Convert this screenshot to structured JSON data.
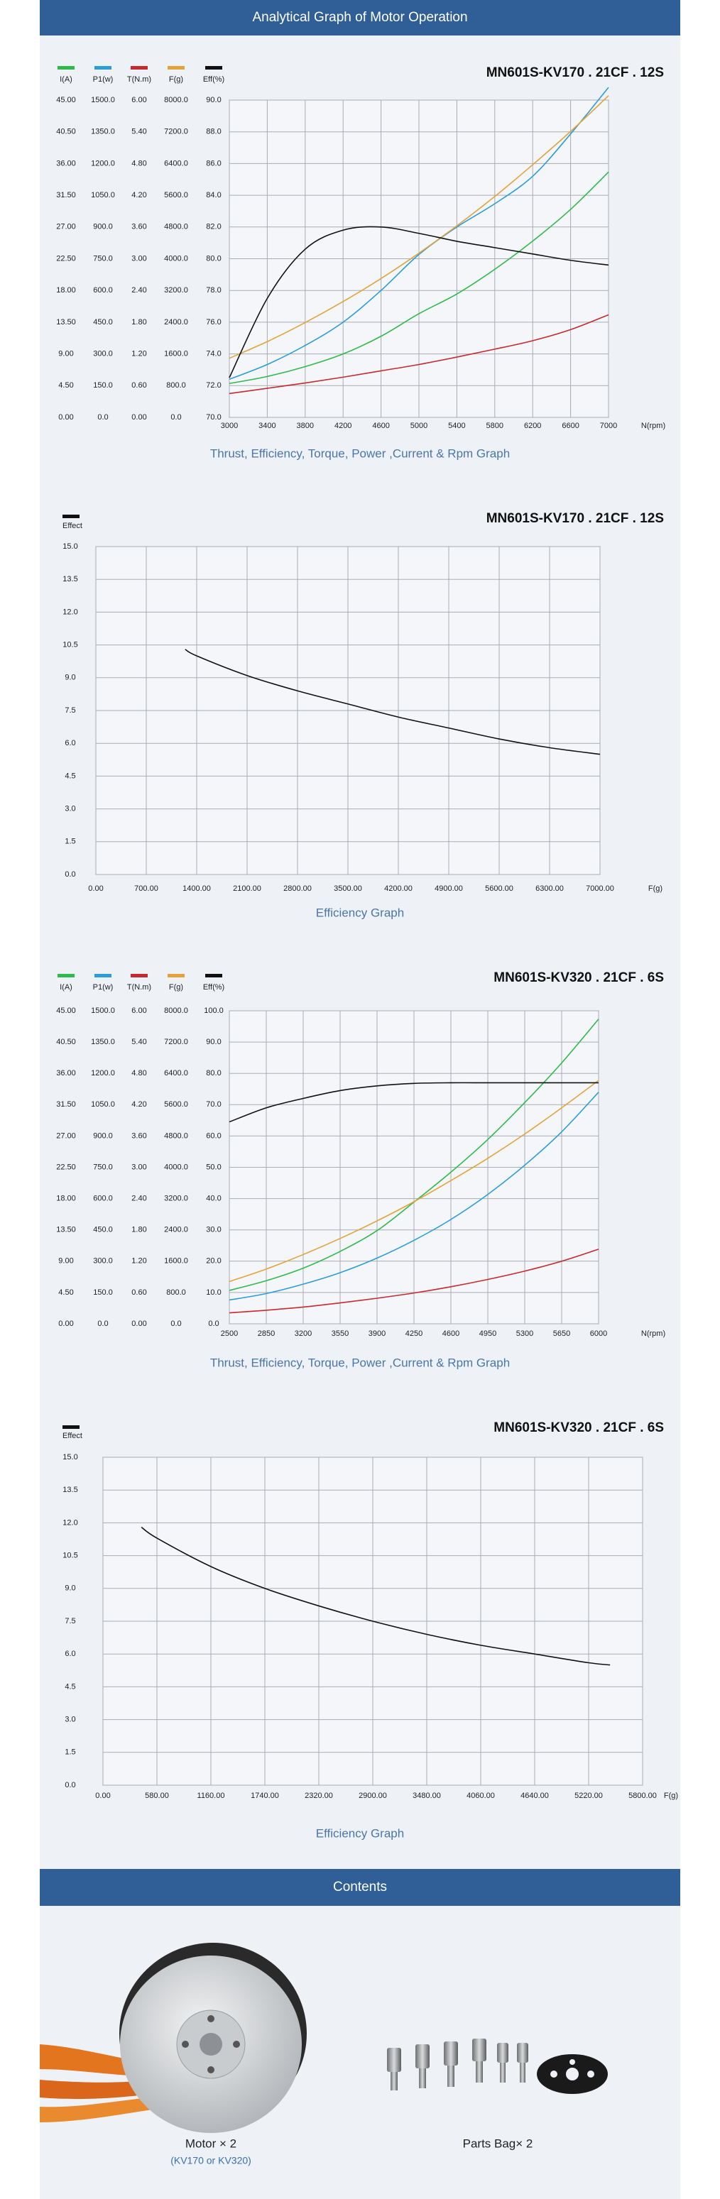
{
  "header": {
    "title": "Analytical Graph of Motor Operation"
  },
  "chart_data": [
    {
      "type": "line",
      "title": "MN601S-KV170 . 21CF . 12S",
      "caption": "Thrust, Efficiency, Torque, Power ,Current & Rpm Graph",
      "xlabel": "N(rpm)",
      "x": [
        3000,
        3400,
        3800,
        4200,
        4600,
        5000,
        5400,
        5800,
        6200,
        6600,
        7000
      ],
      "xlim": [
        3000,
        7000
      ],
      "xticks": [
        3000,
        3400,
        3800,
        4200,
        4600,
        5000,
        5400,
        5800,
        6200,
        6600,
        7000
      ],
      "grid": true,
      "series": [
        {
          "name": "I(A)",
          "color": "#2fba4c",
          "ylim": [
            0,
            45
          ],
          "values": [
            4.8,
            5.8,
            7.2,
            9.0,
            11.5,
            14.7,
            17.5,
            21.0,
            25.0,
            29.5,
            34.8
          ],
          "yticks": [
            {
              "value": 0,
              "label": "0.00"
            },
            {
              "value": 4.5,
              "label": "4.50"
            },
            {
              "value": 9,
              "label": "9.00"
            },
            {
              "value": 13.5,
              "label": "13.50"
            },
            {
              "value": 18,
              "label": "18.00"
            },
            {
              "value": 22.5,
              "label": "22.50"
            },
            {
              "value": 27,
              "label": "27.00"
            },
            {
              "value": 31.5,
              "label": "31.50"
            },
            {
              "value": 36,
              "label": "36.00"
            },
            {
              "value": 40.5,
              "label": "40.50"
            },
            {
              "value": 45,
              "label": "45.00"
            }
          ]
        },
        {
          "name": "P1(w)",
          "color": "#2b9dd8",
          "ylim": [
            0,
            1500
          ],
          "values": [
            180,
            250,
            340,
            450,
            600,
            770,
            900,
            1010,
            1140,
            1340,
            1560
          ],
          "yticks": [
            {
              "value": 0,
              "label": "0.0"
            },
            {
              "value": 150,
              "label": "150.0"
            },
            {
              "value": 300,
              "label": "300.0"
            },
            {
              "value": 450,
              "label": "450.0"
            },
            {
              "value": 600,
              "label": "600.0"
            },
            {
              "value": 750,
              "label": "750.0"
            },
            {
              "value": 900,
              "label": "900.0"
            },
            {
              "value": 1050,
              "label": "1050.0"
            },
            {
              "value": 1200,
              "label": "1200.0"
            },
            {
              "value": 1350,
              "label": "1350.0"
            },
            {
              "value": 1500,
              "label": "1500.0"
            }
          ]
        },
        {
          "name": "T(N.m)",
          "color": "#c62a2f",
          "ylim": [
            0,
            6
          ],
          "values": [
            0.45,
            0.55,
            0.65,
            0.76,
            0.88,
            1.0,
            1.14,
            1.29,
            1.45,
            1.66,
            1.94
          ],
          "yticks": [
            {
              "value": 0,
              "label": "0.00"
            },
            {
              "value": 0.6,
              "label": "0.60"
            },
            {
              "value": 1.2,
              "label": "1.20"
            },
            {
              "value": 1.8,
              "label": "1.80"
            },
            {
              "value": 2.4,
              "label": "2.40"
            },
            {
              "value": 3,
              "label": "3.00"
            },
            {
              "value": 3.6,
              "label": "3.60"
            },
            {
              "value": 4.2,
              "label": "4.20"
            },
            {
              "value": 4.8,
              "label": "4.80"
            },
            {
              "value": 5.4,
              "label": "5.40"
            },
            {
              "value": 6,
              "label": "6.00"
            }
          ]
        },
        {
          "name": "F(g)",
          "color": "#e3a33b",
          "ylim": [
            0,
            8000
          ],
          "values": [
            1490,
            1910,
            2390,
            2920,
            3500,
            4140,
            4830,
            5570,
            6370,
            7210,
            8110
          ],
          "yticks": [
            {
              "value": 0,
              "label": "0.0"
            },
            {
              "value": 800,
              "label": "800.0"
            },
            {
              "value": 1600,
              "label": "1600.0"
            },
            {
              "value": 2400,
              "label": "2400.0"
            },
            {
              "value": 3200,
              "label": "3200.0"
            },
            {
              "value": 4000,
              "label": "4000.0"
            },
            {
              "value": 4800,
              "label": "4800.0"
            },
            {
              "value": 5600,
              "label": "5600.0"
            },
            {
              "value": 6400,
              "label": "6400.0"
            },
            {
              "value": 7200,
              "label": "7200.0"
            },
            {
              "value": 8000,
              "label": "8000.0"
            }
          ]
        },
        {
          "name": "Eff(%)",
          "color": "#111111",
          "ylim": [
            70,
            90
          ],
          "values": [
            72.5,
            77.5,
            80.6,
            81.8,
            82.0,
            81.6,
            81.1,
            80.7,
            80.3,
            79.9,
            79.6
          ],
          "yticks": [
            {
              "value": 70,
              "label": "70.0"
            },
            {
              "value": 72,
              "label": "72.0"
            },
            {
              "value": 74,
              "label": "74.0"
            },
            {
              "value": 76,
              "label": "76.0"
            },
            {
              "value": 78,
              "label": "78.0"
            },
            {
              "value": 80,
              "label": "80.0"
            },
            {
              "value": 82,
              "label": "82.0"
            },
            {
              "value": 84,
              "label": "84.0"
            },
            {
              "value": 86,
              "label": "86.0"
            },
            {
              "value": 88,
              "label": "88.0"
            },
            {
              "value": 90,
              "label": "90.0"
            }
          ]
        }
      ]
    },
    {
      "type": "line",
      "title": "MN601S-KV170 . 21CF . 12S",
      "caption": "Efficiency Graph",
      "xlabel": "F(g)",
      "x": [
        1240,
        1400,
        2100,
        2800,
        3500,
        4200,
        4900,
        5600,
        6300,
        7000
      ],
      "xlim": [
        0,
        7000
      ],
      "grid": true,
      "xticks": [
        {
          "value": 0,
          "label": "0.00"
        },
        {
          "value": 700,
          "label": "700.00"
        },
        {
          "value": 1400,
          "label": "1400.00"
        },
        {
          "value": 2100,
          "label": "2100.00"
        },
        {
          "value": 2800,
          "label": "2800.00"
        },
        {
          "value": 3500,
          "label": "3500.00"
        },
        {
          "value": 4200,
          "label": "4200.00"
        },
        {
          "value": 4900,
          "label": "4900.00"
        },
        {
          "value": 5600,
          "label": "5600.00"
        },
        {
          "value": 6300,
          "label": "6300.00"
        },
        {
          "value": 7000,
          "label": "7000.00"
        }
      ],
      "ylim": [
        0,
        15
      ],
      "yticks": [
        {
          "value": 0,
          "label": "0.0"
        },
        {
          "value": 1.5,
          "label": "1.5"
        },
        {
          "value": 3,
          "label": "3.0"
        },
        {
          "value": 4.5,
          "label": "4.5"
        },
        {
          "value": 6,
          "label": "6.0"
        },
        {
          "value": 7.5,
          "label": "7.5"
        },
        {
          "value": 9,
          "label": "9.0"
        },
        {
          "value": 10.5,
          "label": "10.5"
        },
        {
          "value": 12,
          "label": "12.0"
        },
        {
          "value": 13.5,
          "label": "13.5"
        },
        {
          "value": 15,
          "label": "15.0"
        }
      ],
      "series": [
        {
          "name": "Effect",
          "color": "#111111",
          "values": [
            10.3,
            10.0,
            9.1,
            8.4,
            7.8,
            7.2,
            6.7,
            6.2,
            5.8,
            5.5
          ]
        }
      ]
    },
    {
      "type": "line",
      "title": "MN601S-KV320 . 21CF . 6S",
      "caption": "Thrust, Efficiency, Torque, Power ,Current & Rpm Graph",
      "xlabel": "N(rpm)",
      "x": [
        2500,
        2850,
        3200,
        3550,
        3900,
        4250,
        4600,
        4950,
        5300,
        5650,
        6000
      ],
      "xlim": [
        2500,
        6000
      ],
      "xticks": [
        2500,
        2850,
        3200,
        3550,
        3900,
        4250,
        4600,
        4950,
        5300,
        5650,
        6000
      ],
      "grid": true,
      "series": [
        {
          "name": "I(A)",
          "color": "#2fba4c",
          "ylim": [
            0,
            45
          ],
          "values": [
            4.8,
            6.2,
            8.0,
            10.4,
            13.4,
            17.5,
            21.8,
            26.5,
            31.8,
            37.5,
            43.8
          ],
          "yticks": [
            {
              "value": 0,
              "label": "0.00"
            },
            {
              "value": 4.5,
              "label": "4.50"
            },
            {
              "value": 9,
              "label": "9.00"
            },
            {
              "value": 13.5,
              "label": "13.50"
            },
            {
              "value": 18,
              "label": "18.00"
            },
            {
              "value": 22.5,
              "label": "22.50"
            },
            {
              "value": 27,
              "label": "27.00"
            },
            {
              "value": 31.5,
              "label": "31.50"
            },
            {
              "value": 36,
              "label": "36.00"
            },
            {
              "value": 40.5,
              "label": "40.50"
            },
            {
              "value": 45,
              "label": "45.00"
            }
          ]
        },
        {
          "name": "P1(w)",
          "color": "#2b9dd8",
          "ylim": [
            0,
            1500
          ],
          "values": [
            114,
            145,
            190,
            245,
            315,
            400,
            500,
            620,
            760,
            920,
            1110
          ],
          "yticks": [
            {
              "value": 0,
              "label": "0.0"
            },
            {
              "value": 150,
              "label": "150.0"
            },
            {
              "value": 300,
              "label": "300.0"
            },
            {
              "value": 450,
              "label": "450.0"
            },
            {
              "value": 600,
              "label": "600.0"
            },
            {
              "value": 750,
              "label": "750.0"
            },
            {
              "value": 900,
              "label": "900.0"
            },
            {
              "value": 1050,
              "label": "1050.0"
            },
            {
              "value": 1200,
              "label": "1200.0"
            },
            {
              "value": 1350,
              "label": "1350.0"
            },
            {
              "value": 1500,
              "label": "1500.0"
            }
          ]
        },
        {
          "name": "T(N.m)",
          "color": "#c62a2f",
          "ylim": [
            0,
            6
          ],
          "values": [
            0.21,
            0.26,
            0.32,
            0.4,
            0.49,
            0.59,
            0.71,
            0.85,
            1.01,
            1.2,
            1.43
          ],
          "yticks": [
            {
              "value": 0,
              "label": "0.00"
            },
            {
              "value": 0.6,
              "label": "0.60"
            },
            {
              "value": 1.2,
              "label": "1.20"
            },
            {
              "value": 1.8,
              "label": "1.80"
            },
            {
              "value": 2.4,
              "label": "2.40"
            },
            {
              "value": 3,
              "label": "3.00"
            },
            {
              "value": 3.6,
              "label": "3.60"
            },
            {
              "value": 4.2,
              "label": "4.20"
            },
            {
              "value": 4.8,
              "label": "4.80"
            },
            {
              "value": 5.4,
              "label": "5.40"
            },
            {
              "value": 6,
              "label": "6.00"
            }
          ]
        },
        {
          "name": "F(g)",
          "color": "#e3a33b",
          "ylim": [
            0,
            8000
          ],
          "values": [
            1080,
            1400,
            1770,
            2180,
            2630,
            3120,
            3660,
            4230,
            4850,
            5520,
            6220
          ],
          "yticks": [
            {
              "value": 0,
              "label": "0.0"
            },
            {
              "value": 800,
              "label": "800.0"
            },
            {
              "value": 1600,
              "label": "1600.0"
            },
            {
              "value": 2400,
              "label": "2400.0"
            },
            {
              "value": 3200,
              "label": "3200.0"
            },
            {
              "value": 4000,
              "label": "4000.0"
            },
            {
              "value": 4800,
              "label": "4800.0"
            },
            {
              "value": 5600,
              "label": "5600.0"
            },
            {
              "value": 6400,
              "label": "6400.0"
            },
            {
              "value": 7200,
              "label": "7200.0"
            },
            {
              "value": 8000,
              "label": "8000.0"
            }
          ]
        },
        {
          "name": "Eff(%)",
          "color": "#111111",
          "ylim": [
            0,
            100
          ],
          "values": [
            64.5,
            69,
            72,
            74.5,
            76,
            76.8,
            77,
            77,
            77,
            77,
            77
          ],
          "yticks": [
            {
              "value": 0,
              "label": "0.0"
            },
            {
              "value": 10,
              "label": "10.0"
            },
            {
              "value": 20,
              "label": "20.0"
            },
            {
              "value": 30,
              "label": "30.0"
            },
            {
              "value": 40,
              "label": "40.0"
            },
            {
              "value": 50,
              "label": "50.0"
            },
            {
              "value": 60,
              "label": "60.0"
            },
            {
              "value": 70,
              "label": "70.0"
            },
            {
              "value": 80,
              "label": "80.0"
            },
            {
              "value": 90,
              "label": "90.0"
            },
            {
              "value": 100,
              "label": "100.0"
            }
          ]
        }
      ]
    },
    {
      "type": "line",
      "title": "MN601S-KV320 . 21CF . 6S",
      "caption": "Efficiency Graph",
      "xlabel": "F(g)",
      "x": [
        414,
        580,
        1160,
        1740,
        2320,
        2900,
        3480,
        4060,
        4640,
        5220,
        5450
      ],
      "xlim": [
        0,
        5800
      ],
      "grid": true,
      "xticks": [
        {
          "value": 0,
          "label": "0.00"
        },
        {
          "value": 580,
          "label": "580.00"
        },
        {
          "value": 1160,
          "label": "1160.00"
        },
        {
          "value": 1740,
          "label": "1740.00"
        },
        {
          "value": 2320,
          "label": "2320.00"
        },
        {
          "value": 2900,
          "label": "2900.00"
        },
        {
          "value": 3480,
          "label": "3480.00"
        },
        {
          "value": 4060,
          "label": "4060.00"
        },
        {
          "value": 4640,
          "label": "4640.00"
        },
        {
          "value": 5220,
          "label": "5220.00"
        },
        {
          "value": 5800,
          "label": "5800.00"
        }
      ],
      "ylim": [
        0,
        15
      ],
      "yticks": [
        {
          "value": 0,
          "label": "0.0"
        },
        {
          "value": 1.5,
          "label": "1.5"
        },
        {
          "value": 3,
          "label": "3.0"
        },
        {
          "value": 4.5,
          "label": "4.5"
        },
        {
          "value": 6,
          "label": "6.0"
        },
        {
          "value": 7.5,
          "label": "7.5"
        },
        {
          "value": 9,
          "label": "9.0"
        },
        {
          "value": 10.5,
          "label": "10.5"
        },
        {
          "value": 12,
          "label": "12.0"
        },
        {
          "value": 13.5,
          "label": "13.5"
        },
        {
          "value": 15,
          "label": "15.0"
        }
      ],
      "series": [
        {
          "name": "Effect",
          "color": "#111111",
          "values": [
            11.8,
            11.3,
            10.0,
            9.0,
            8.2,
            7.5,
            6.9,
            6.4,
            6.0,
            5.6,
            5.5
          ]
        }
      ]
    }
  ],
  "contents": {
    "title": "Contents",
    "items": [
      {
        "label": "Motor × 2",
        "note": "(KV170 or KV320)"
      },
      {
        "label": "Parts Bag× 2"
      }
    ]
  }
}
